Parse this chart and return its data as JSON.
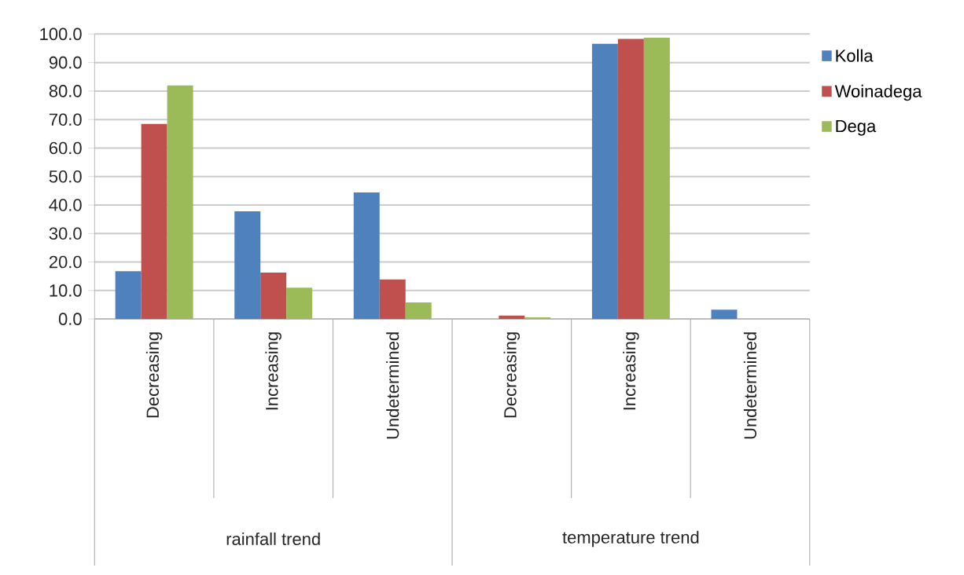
{
  "chart_data": {
    "type": "bar",
    "categories": [
      "Decreasing",
      "Increasing",
      "Undetermined",
      "Decreasing",
      "Increasing",
      "Undetermined"
    ],
    "series": [
      {
        "name": "Kolla",
        "color": "#4f81bd",
        "values": [
          16.8,
          37.8,
          44.4,
          0,
          96.6,
          3.3
        ]
      },
      {
        "name": "Woinadega",
        "color": "#c0504d",
        "values": [
          68.5,
          16.3,
          13.9,
          1.2,
          98.3,
          0
        ]
      },
      {
        "name": "Dega",
        "color": "#9bbb59",
        "values": [
          82.0,
          11.0,
          5.8,
          0.6,
          98.7,
          0
        ]
      }
    ],
    "annotations": [
      "rainfall trend",
      "temperature trend"
    ],
    "ylim": [
      0,
      100
    ],
    "yticks": [
      {
        "value": 0,
        "label": "0.0"
      },
      {
        "value": 10,
        "label": "10.0"
      },
      {
        "value": 20,
        "label": "20.0"
      },
      {
        "value": 30,
        "label": "30.0"
      },
      {
        "value": 40,
        "label": "40.0"
      },
      {
        "value": 50,
        "label": "50.0"
      },
      {
        "value": 60,
        "label": "60.0"
      },
      {
        "value": 70,
        "label": "70.0"
      },
      {
        "value": 80,
        "label": "80.0"
      },
      {
        "value": 90,
        "label": "90.0"
      },
      {
        "value": 100,
        "label": "100.0"
      }
    ],
    "grid": "y",
    "legend": "top right"
  }
}
